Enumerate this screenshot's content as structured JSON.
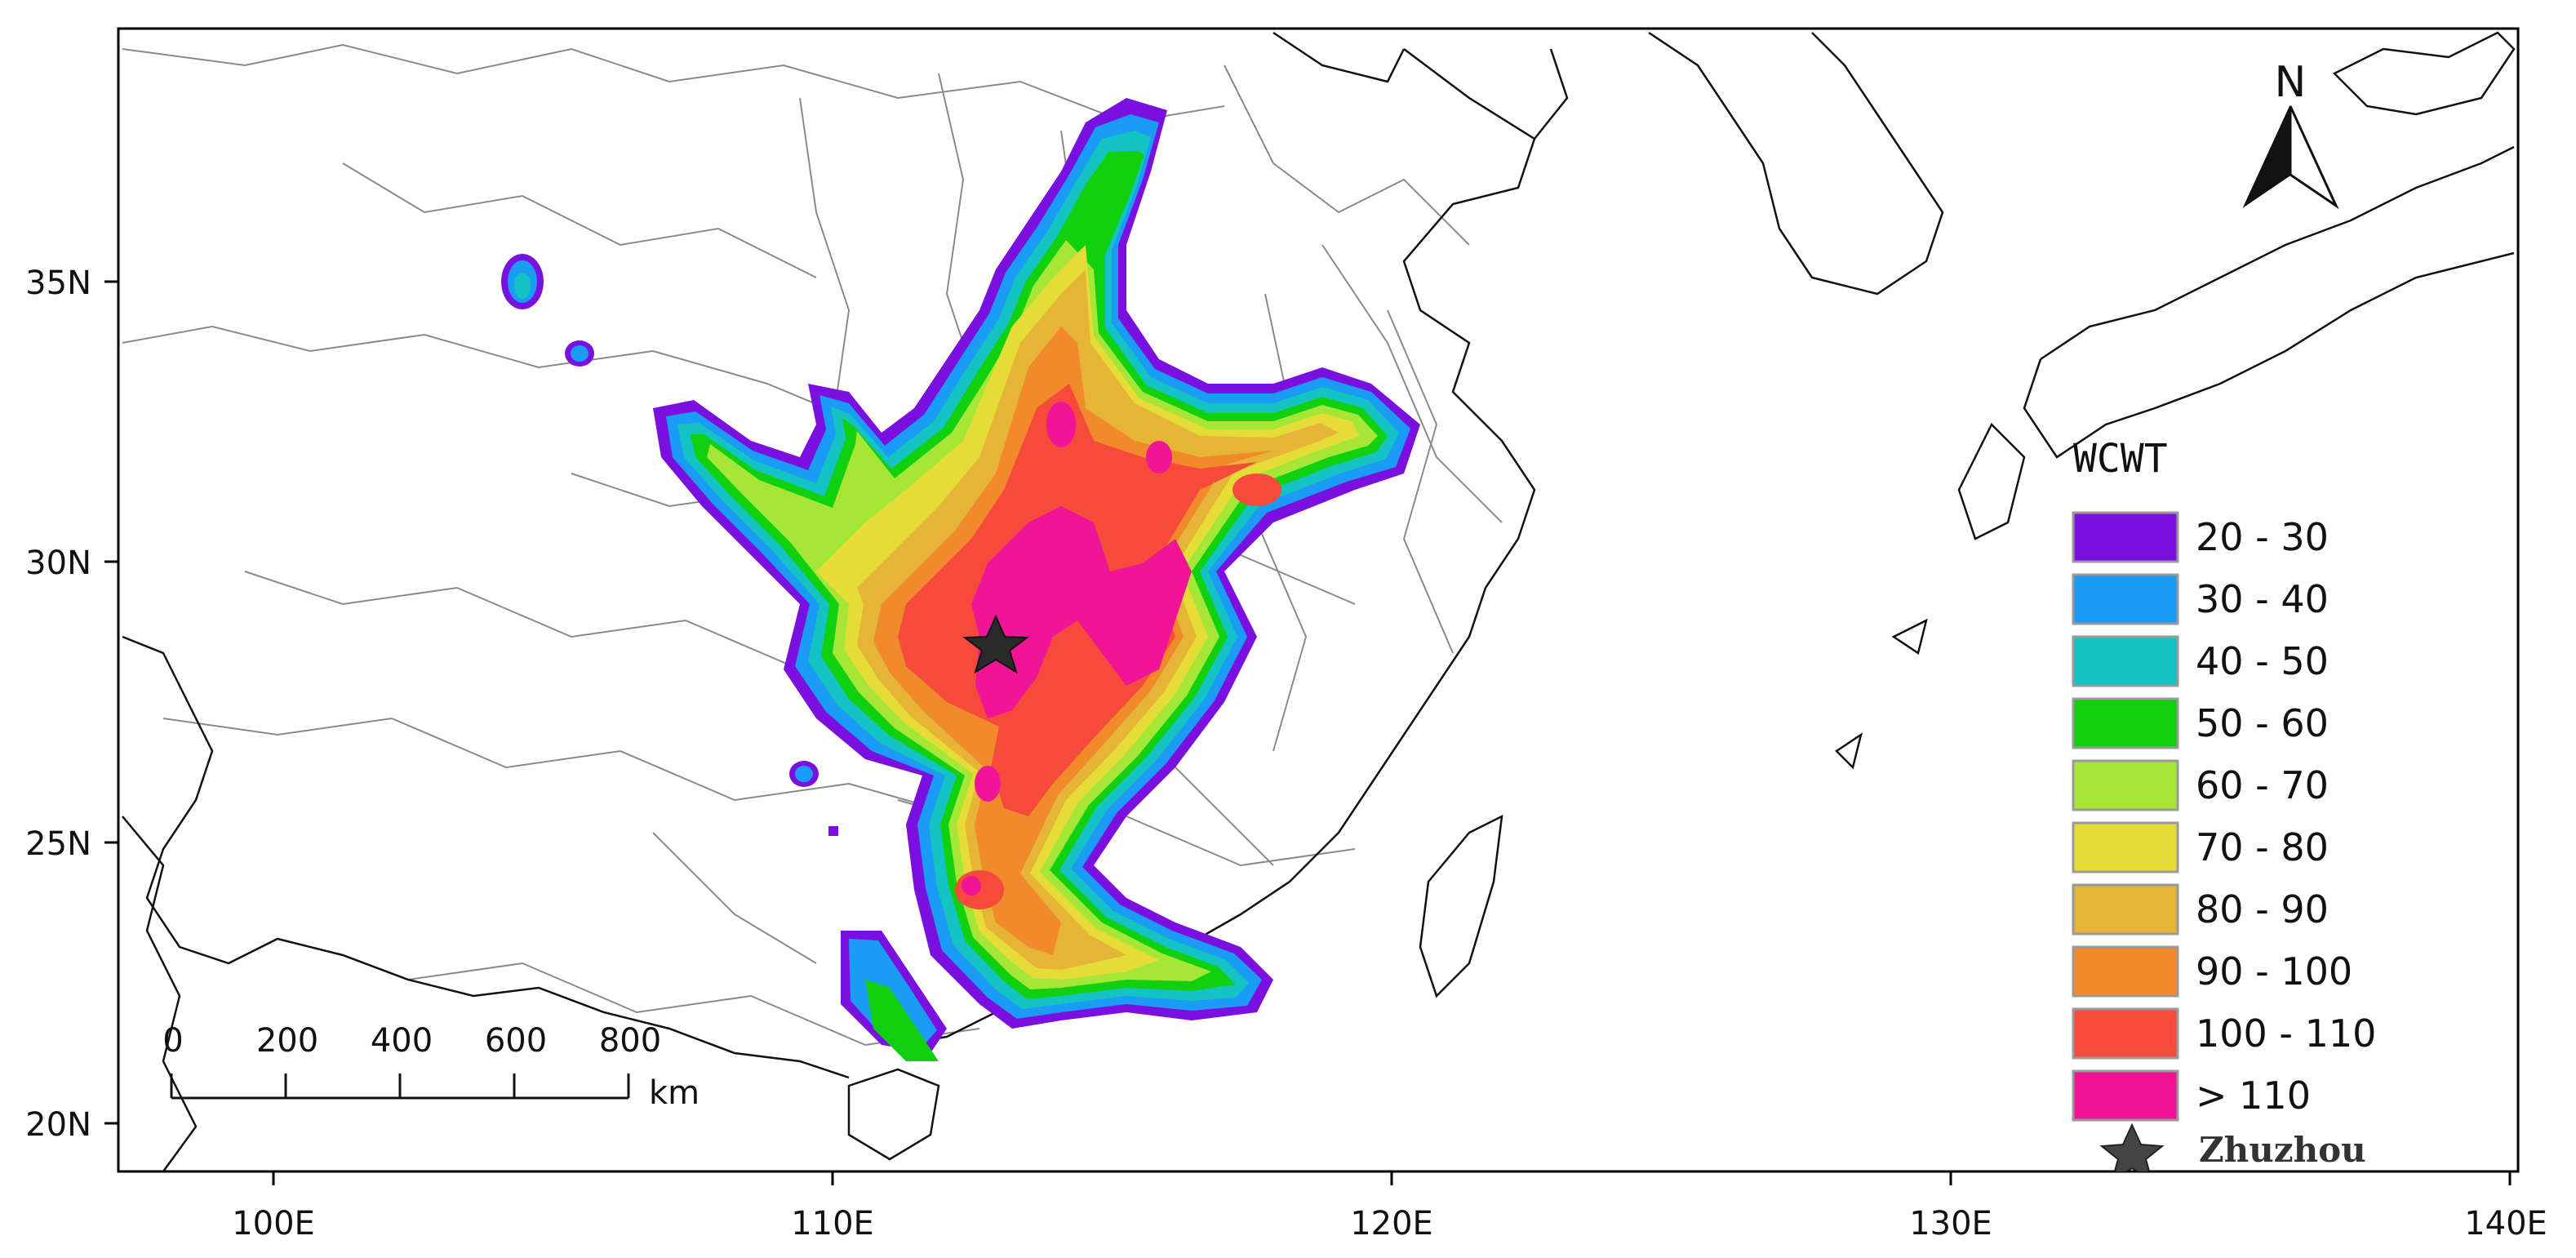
{
  "map": {
    "x_ticks": [
      "100E",
      "110E",
      "120E",
      "130E",
      "140E"
    ],
    "y_ticks": [
      "35N",
      "30N",
      "25N",
      "20N"
    ],
    "north_label": "N",
    "scale_bar": {
      "labels": [
        "0",
        "200",
        "400",
        "600",
        "800"
      ],
      "unit": "km"
    },
    "legend": {
      "title": "WCWT",
      "items": [
        {
          "label": "20 - 30",
          "color": "#7a10e0"
        },
        {
          "label": "30 - 40",
          "color": "#1a9cf5"
        },
        {
          "label": "40 - 50",
          "color": "#14c4c4"
        },
        {
          "label": "50 - 60",
          "color": "#10d010"
        },
        {
          "label": "60 - 70",
          "color": "#a6e637"
        },
        {
          "label": "70 - 80",
          "color": "#e6dc37"
        },
        {
          "label": "80 - 90",
          "color": "#e6b437"
        },
        {
          "label": "90 - 100",
          "color": "#f08a2a"
        },
        {
          "label": "100 - 110",
          "color": "#f54a3c"
        },
        {
          "label": "> 110",
          "color": "#f01496"
        }
      ],
      "marker_label": "Zhuzhou"
    }
  }
}
